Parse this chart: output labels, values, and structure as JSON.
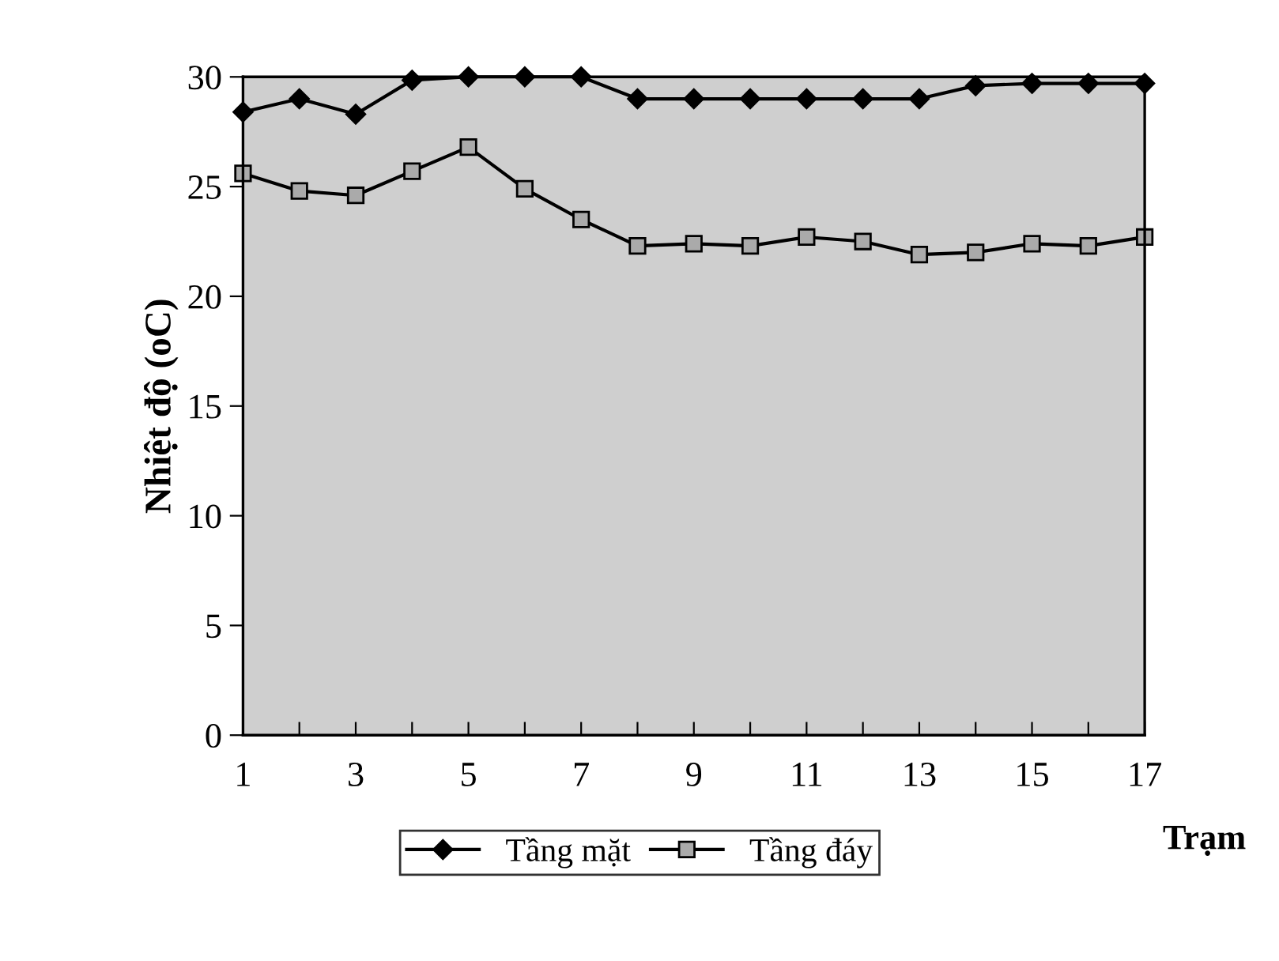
{
  "chart_data": {
    "type": "line",
    "ylabel": "Nhiệt độ (oC)",
    "xlabel": "Trạm",
    "x": [
      1,
      2,
      3,
      4,
      5,
      6,
      7,
      8,
      9,
      10,
      11,
      12,
      13,
      14,
      15,
      16,
      17
    ],
    "series": [
      {
        "name": "Tầng mặt",
        "color": "#000000",
        "marker": "diamond",
        "values": [
          28.4,
          29.0,
          28.3,
          29.85,
          30,
          30,
          30,
          29.0,
          29.0,
          29.0,
          29.0,
          29.0,
          29.0,
          29.6,
          29.7,
          29.7,
          29.7
        ]
      },
      {
        "name": "Tầng đáy",
        "color": "#000000",
        "marker": "square",
        "values": [
          25.6,
          24.8,
          24.6,
          25.7,
          26.8,
          24.9,
          23.5,
          22.3,
          22.4,
          22.3,
          22.7,
          22.5,
          21.9,
          22.0,
          22.4,
          22.3,
          22.7
        ]
      }
    ],
    "xlim": [
      1,
      17
    ],
    "xticks": [
      1,
      {
        "value": 2,
        "label": null
      },
      3,
      {
        "value": 4,
        "label": null
      },
      5,
      {
        "value": 6,
        "label": null
      },
      7,
      {
        "value": 8,
        "label": null
      },
      9,
      {
        "value": 10,
        "label": null
      },
      11,
      {
        "value": 12,
        "label": null
      },
      13,
      {
        "value": 14,
        "label": null
      },
      15,
      {
        "value": 16,
        "label": null
      },
      17
    ],
    "ylim": [
      0,
      30
    ],
    "yticks": [
      0,
      5,
      10,
      15,
      20,
      25,
      30
    ],
    "grid": false,
    "legend": "bottom",
    "line_style": "solid"
  }
}
